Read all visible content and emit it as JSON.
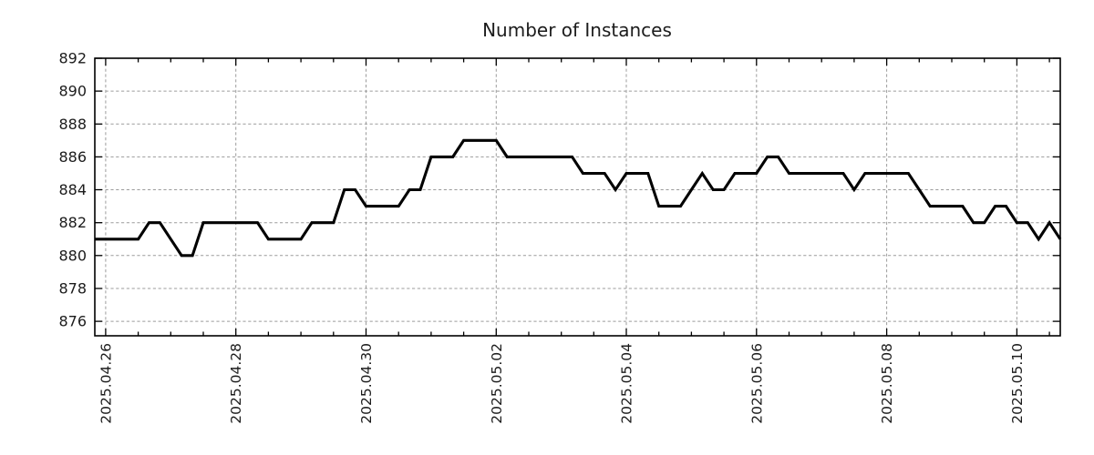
{
  "page": {
    "background": "#ffffff"
  },
  "chart_data": {
    "type": "line",
    "title": "Number of Instances",
    "series_name": "Number of Instances",
    "xlabel": "",
    "ylabel": "",
    "grid": true,
    "legend_position": "none",
    "line_color": "#000000",
    "grid_color": "#9c9c9c",
    "axis_color": "#000000",
    "text_color": "#1c1c1c",
    "ylim": [
      875.12,
      892
    ],
    "y_ticks": [
      876,
      878,
      880,
      882,
      884,
      886,
      888,
      890,
      892
    ],
    "x_tick_labels": [
      "2025.04.26",
      "2025.04.28",
      "2025.04.30",
      "2025.05.02",
      "2025.05.04",
      "2025.05.06",
      "2025.05.08",
      "2025.05.10"
    ],
    "x_minor_tick_hours": 12,
    "x_start": "2025-04-25 20:00",
    "x_end": "2025-05-10 16:00",
    "x_interval_hours": 4,
    "values": [
      881,
      881,
      881,
      881,
      881,
      882,
      882,
      881,
      880,
      880,
      882,
      882,
      882,
      882,
      882,
      882,
      881,
      881,
      881,
      881,
      882,
      882,
      882,
      884,
      884,
      883,
      883,
      883,
      883,
      884,
      884,
      886,
      886,
      886,
      887,
      887,
      887,
      887,
      886,
      886,
      886,
      886,
      886,
      886,
      886,
      885,
      885,
      885,
      884,
      885,
      885,
      885,
      883,
      883,
      883,
      884,
      885,
      884,
      884,
      885,
      885,
      885,
      886,
      886,
      885,
      885,
      885,
      885,
      885,
      885,
      884,
      885,
      885,
      885,
      885,
      885,
      884,
      883,
      883,
      883,
      883,
      882,
      882,
      883,
      883,
      882,
      882,
      881,
      882,
      881
    ]
  }
}
